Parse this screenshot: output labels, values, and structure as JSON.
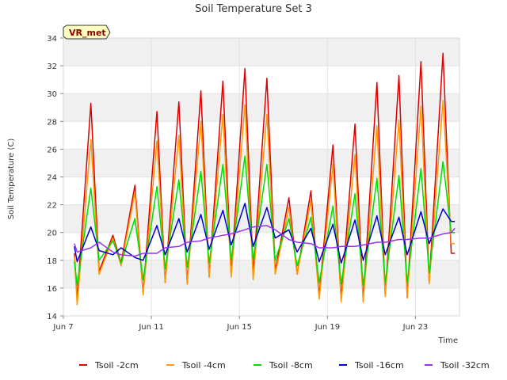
{
  "chart_data": {
    "type": "line",
    "title": "Soil Temperature Set 3",
    "xlabel": "Time",
    "ylabel": "Soil Temperature (C)",
    "badge": "VR_met",
    "xlim": [
      "2023-06-07",
      "2023-06-25"
    ],
    "ylim": [
      14,
      34
    ],
    "x_ticks": [
      {
        "x": "2023-06-07",
        "label": "Jun 7"
      },
      {
        "x": "2023-06-11",
        "label": "Jun 11"
      },
      {
        "x": "2023-06-15",
        "label": "Jun 15"
      },
      {
        "x": "2023-06-19",
        "label": "Jun 19"
      },
      {
        "x": "2023-06-23",
        "label": "Jun 23"
      }
    ],
    "y_ticks": [
      14,
      16,
      18,
      20,
      22,
      24,
      26,
      28,
      30,
      32,
      34
    ],
    "grid": true,
    "banded_background": true,
    "legend_position": "bottom",
    "x": [
      "2023-06-07T12:00",
      "2023-06-07T15:00",
      "2023-06-08T06:00",
      "2023-06-08T15:00",
      "2023-06-09T06:00",
      "2023-06-09T15:00",
      "2023-06-10T06:00",
      "2023-06-10T15:00",
      "2023-06-11T06:00",
      "2023-06-11T15:00",
      "2023-06-12T06:00",
      "2023-06-12T15:00",
      "2023-06-13T06:00",
      "2023-06-13T15:00",
      "2023-06-14T06:00",
      "2023-06-14T15:00",
      "2023-06-15T06:00",
      "2023-06-15T15:00",
      "2023-06-16T06:00",
      "2023-06-16T15:00",
      "2023-06-17T06:00",
      "2023-06-17T15:00",
      "2023-06-18T06:00",
      "2023-06-18T15:00",
      "2023-06-19T06:00",
      "2023-06-19T15:00",
      "2023-06-20T06:00",
      "2023-06-20T15:00",
      "2023-06-21T06:00",
      "2023-06-21T15:00",
      "2023-06-22T06:00",
      "2023-06-22T15:00",
      "2023-06-23T06:00",
      "2023-06-23T15:00",
      "2023-06-24T06:00",
      "2023-06-24T15:00",
      "2023-06-24T19:00"
    ],
    "series": [
      {
        "name": "Tsoil -2cm",
        "color": "#dd0000",
        "values": [
          18.5,
          15.2,
          29.3,
          17.2,
          19.8,
          17.8,
          23.4,
          15.6,
          28.7,
          16.4,
          29.4,
          16.3,
          30.2,
          16.8,
          30.9,
          17.0,
          31.8,
          17.0,
          31.1,
          17.2,
          22.5,
          17.0,
          23.0,
          15.4,
          26.3,
          15.2,
          27.8,
          15.1,
          30.8,
          15.4,
          31.3,
          15.3,
          32.3,
          16.4,
          32.9,
          18.5,
          18.5
        ]
      },
      {
        "name": "Tsoil -4cm",
        "color": "#ff9900",
        "values": [
          18.3,
          14.8,
          26.7,
          17.0,
          19.6,
          17.6,
          22.9,
          15.5,
          26.6,
          16.4,
          27.0,
          16.3,
          28.0,
          16.8,
          28.5,
          16.8,
          29.2,
          16.6,
          28.5,
          17.0,
          21.8,
          17.0,
          22.3,
          15.2,
          24.9,
          15.0,
          25.6,
          15.0,
          27.7,
          15.4,
          28.1,
          15.3,
          29.1,
          16.3,
          29.5,
          19.2,
          19.2
        ]
      },
      {
        "name": "Tsoil -8cm",
        "color": "#00dd00",
        "values": [
          17.9,
          16.2,
          23.2,
          18.0,
          19.4,
          17.8,
          21.0,
          16.6,
          23.3,
          17.4,
          23.8,
          17.5,
          24.4,
          17.8,
          24.9,
          18.0,
          25.5,
          18.0,
          24.9,
          18.0,
          21.0,
          17.6,
          21.1,
          16.4,
          21.9,
          16.3,
          22.8,
          16.2,
          23.9,
          16.4,
          24.1,
          16.4,
          24.6,
          17.1,
          25.1,
          20.0,
          20.0
        ]
      },
      {
        "name": "Tsoil -16cm",
        "color": "#0000cc",
        "values": [
          19.0,
          17.9,
          20.4,
          18.7,
          18.4,
          18.9,
          18.2,
          18.0,
          20.5,
          18.4,
          21.0,
          18.6,
          21.3,
          18.8,
          21.6,
          19.1,
          22.1,
          19.0,
          21.8,
          19.6,
          20.2,
          18.6,
          20.3,
          17.9,
          20.6,
          17.8,
          20.9,
          18.0,
          21.2,
          18.4,
          21.1,
          18.4,
          21.5,
          19.2,
          21.7,
          20.8,
          20.8
        ]
      },
      {
        "name": "Tsoil -32cm",
        "color": "#9933ee",
        "values": [
          19.2,
          18.6,
          18.9,
          19.3,
          18.6,
          18.4,
          18.3,
          18.5,
          18.5,
          18.9,
          19.0,
          19.3,
          19.4,
          19.6,
          19.8,
          19.9,
          20.2,
          20.4,
          20.5,
          20.2,
          19.5,
          19.3,
          19.2,
          18.9,
          18.9,
          19.0,
          19.0,
          19.1,
          19.3,
          19.3,
          19.5,
          19.5,
          19.6,
          19.6,
          19.9,
          20.0,
          20.3
        ]
      }
    ]
  }
}
